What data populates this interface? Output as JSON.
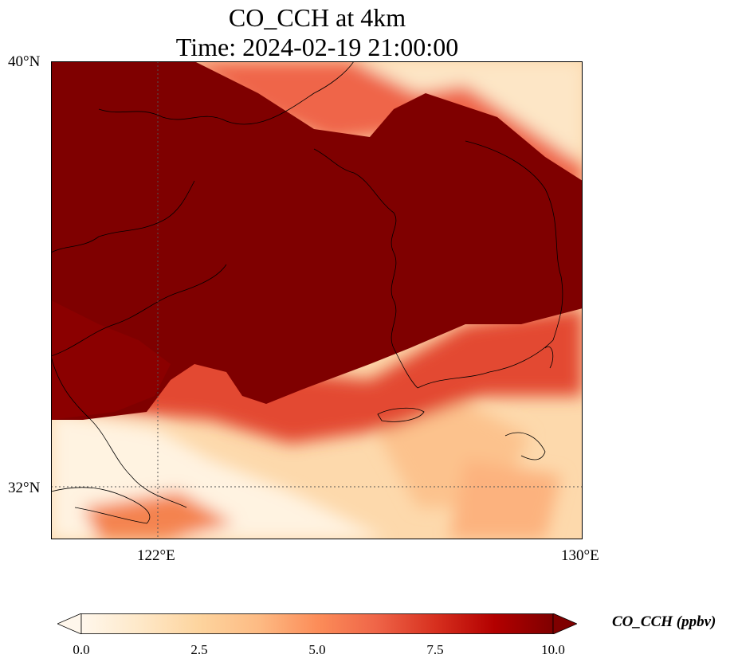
{
  "title": {
    "line1": "CO_CCH at 4km",
    "line2": "Time: 2024-02-19 21:00:00"
  },
  "map": {
    "variable": "CO_CCH",
    "extent": {
      "lon_min": 120.4,
      "lon_max": 130.0,
      "lat_min": 31.1,
      "lat_max": 40.0
    },
    "gridlines": {
      "lon": [
        122
      ],
      "lat": [
        32
      ],
      "style": "dotted"
    },
    "lat_labels": [
      "40°N",
      "32°N"
    ],
    "lon_labels": [
      "122°E",
      "130°E"
    ],
    "colormap": "OrRd",
    "colors": {
      "low": "#fff7ec",
      "mid": "#fc8d59",
      "high": "#7f0000"
    }
  },
  "colorbar": {
    "label": "CO_CCH (ppbv)",
    "ticks": [
      "0.0",
      "2.5",
      "5.0",
      "7.5",
      "10.0"
    ],
    "range": [
      0,
      10
    ],
    "extend": "both"
  }
}
